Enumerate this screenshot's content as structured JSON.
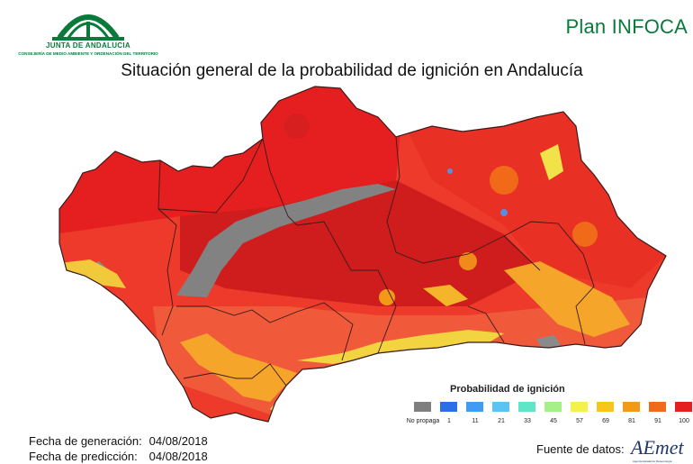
{
  "header": {
    "logo_org_line1": "JUNTA DE ANDALUCIA",
    "logo_org_line2": "CONSEJERÍA DE MEDIO AMBIENTE Y ORDENACIÓN DEL TERRITORIO",
    "brand": "Plan INFOCA",
    "title": "Situación general de la probabilidad de ignición en Andalucía"
  },
  "legend": {
    "title": "Probabilidad de ignición",
    "classes": [
      {
        "label": "No propaga",
        "color": "#7f7f7f"
      },
      {
        "label": "1",
        "color": "#2b6ee8"
      },
      {
        "label": "11",
        "color": "#3f9cf2"
      },
      {
        "label": "21",
        "color": "#5cc4f5"
      },
      {
        "label": "33",
        "color": "#5fe6c8"
      },
      {
        "label": "45",
        "color": "#a6f08a"
      },
      {
        "label": "57",
        "color": "#f2f24a"
      },
      {
        "label": "69",
        "color": "#f7c51c"
      },
      {
        "label": "81",
        "color": "#f29a17"
      },
      {
        "label": "91",
        "color": "#f06a1a"
      },
      {
        "label": "100",
        "color": "#e51f1f"
      }
    ]
  },
  "dates": {
    "generation_label": "Fecha de generación:",
    "generation_value": "04/08/2018",
    "prediction_label": "Fecha de predicción:",
    "prediction_value": "04/08/2018"
  },
  "source": {
    "label": "Fuente de datos:",
    "brand": "AEmet",
    "brand_sub": "Agencia Estatal de Meteorología"
  },
  "map_colors": {
    "high": "#e51f1f",
    "dark_red": "#d31c1c",
    "orange_red": "#f05a3a",
    "yellow": "#f2e24a",
    "gray": "#7f7f7f",
    "border": "#3a1a1a",
    "brand_green": "#0a7a3a"
  }
}
